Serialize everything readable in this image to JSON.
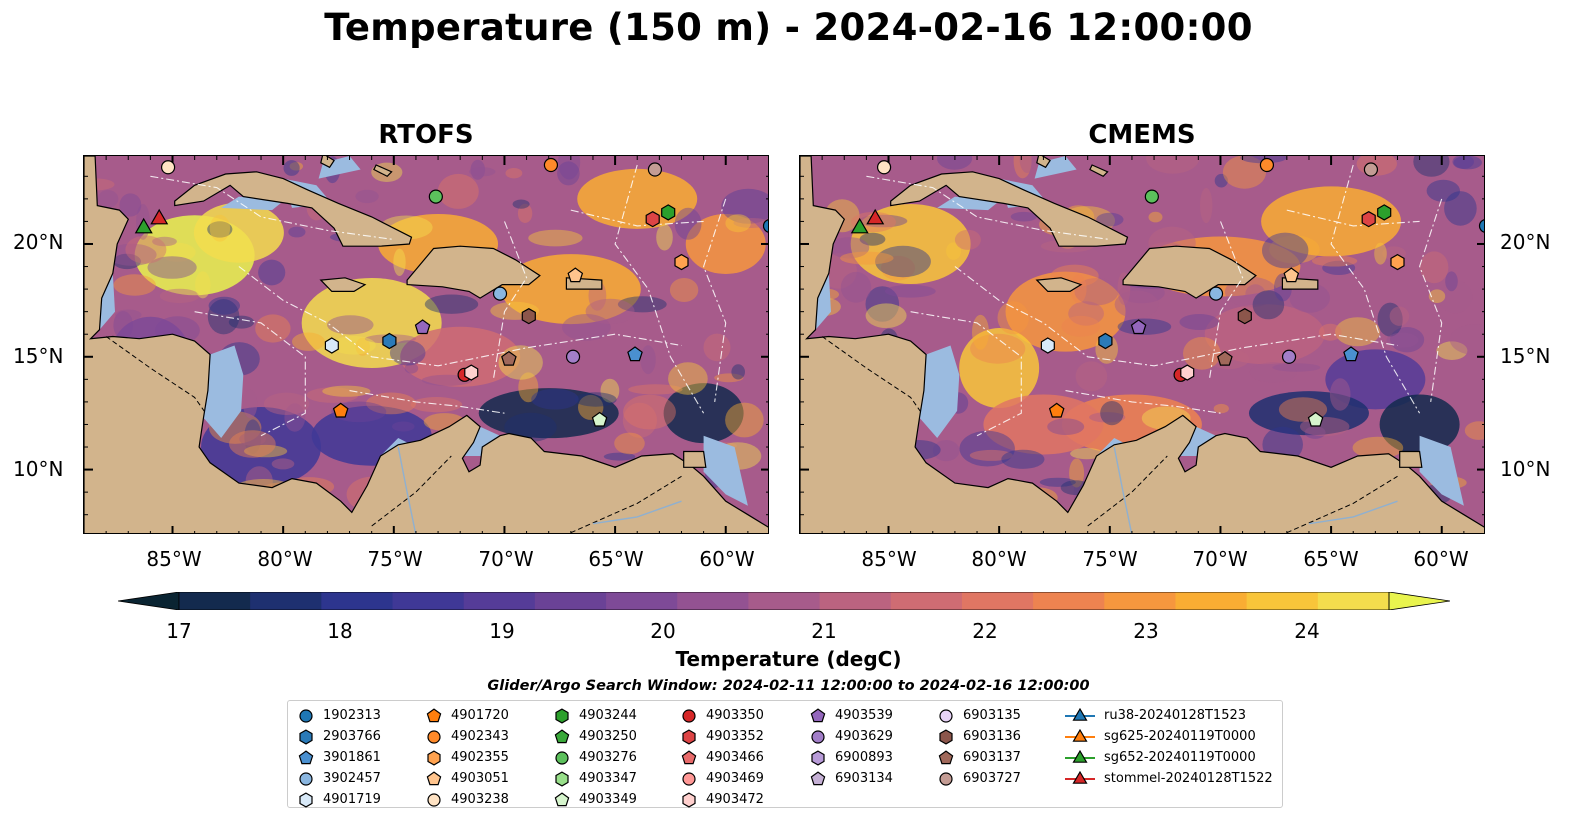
{
  "title": "Temperature (150 m) - 2024-02-16 12:00:00",
  "panels": [
    {
      "title": "RTOFS"
    },
    {
      "title": "CMEMS"
    }
  ],
  "lat_labels": [
    "20°N",
    "15°N",
    "10°N"
  ],
  "lon_labels": [
    "85°W",
    "80°W",
    "75°W",
    "70°W",
    "65°W",
    "60°W"
  ],
  "colorbar": {
    "label": "Temperature (degC)",
    "ticks": [
      "17",
      "18",
      "19",
      "20",
      "21",
      "22",
      "23",
      "24"
    ],
    "range": [
      16.75,
      24.75
    ],
    "colors": [
      "#0a2432",
      "#132a4e",
      "#1e3070",
      "#2d358e",
      "#3f3896",
      "#553c98",
      "#6a4296",
      "#7e4a97",
      "#935292",
      "#a75b8b",
      "#bb6380",
      "#cf6c73",
      "#e07663",
      "#ed8350",
      "#f6973e",
      "#f9ad33",
      "#f8c53a",
      "#f3dd4d",
      "#e9f44e"
    ]
  },
  "legend": {
    "title": "Glider/Argo Search Window: 2024-02-11 12:00:00 to 2024-02-16 12:00:00",
    "columns": [
      [
        {
          "label": "1902313",
          "marker": "circle",
          "color": "#1f77b4"
        },
        {
          "label": "2903766",
          "marker": "hexagon",
          "color": "#2a7ab8"
        },
        {
          "label": "3901861",
          "marker": "pentagon",
          "color": "#4a90d0"
        },
        {
          "label": "3902457",
          "marker": "circle",
          "color": "#8ab6e0"
        },
        {
          "label": "4901719",
          "marker": "hexagon",
          "color": "#d8e9f8"
        }
      ],
      [
        {
          "label": "4901720",
          "marker": "pentagon",
          "color": "#ff7f0e"
        },
        {
          "label": "4902343",
          "marker": "circle",
          "color": "#ff8a2a"
        },
        {
          "label": "4902355",
          "marker": "hexagon",
          "color": "#ffa24f"
        },
        {
          "label": "4903051",
          "marker": "pentagon",
          "color": "#ffc48d"
        },
        {
          "label": "4903238",
          "marker": "circle",
          "color": "#ffe3c4"
        }
      ],
      [
        {
          "label": "4903244",
          "marker": "hexagon",
          "color": "#2ca02c"
        },
        {
          "label": "4903250",
          "marker": "pentagon",
          "color": "#39a83a"
        },
        {
          "label": "4903276",
          "marker": "circle",
          "color": "#5cc05c"
        },
        {
          "label": "4903347",
          "marker": "hexagon",
          "color": "#98df8a"
        },
        {
          "label": "4903349",
          "marker": "pentagon",
          "color": "#d6f5cd"
        }
      ],
      [
        {
          "label": "4903350",
          "marker": "circle",
          "color": "#d62728"
        },
        {
          "label": "4903352",
          "marker": "hexagon",
          "color": "#dd4445"
        },
        {
          "label": "4903466",
          "marker": "pentagon",
          "color": "#e86a6a"
        },
        {
          "label": "4903469",
          "marker": "circle",
          "color": "#ff9896"
        },
        {
          "label": "4903472",
          "marker": "hexagon",
          "color": "#ffd0ce"
        }
      ],
      [
        {
          "label": "4903539",
          "marker": "pentagon",
          "color": "#9467bd"
        },
        {
          "label": "4903629",
          "marker": "circle",
          "color": "#a27ec8"
        },
        {
          "label": "6900893",
          "marker": "hexagon",
          "color": "#b89bd8"
        },
        {
          "label": "6903134",
          "marker": "pentagon",
          "color": "#c5b0d5"
        }
      ],
      [
        {
          "label": "6903135",
          "marker": "circle",
          "color": "#e8d3f7"
        },
        {
          "label": "6903136",
          "marker": "hexagon",
          "color": "#8c564b"
        },
        {
          "label": "6903137",
          "marker": "pentagon",
          "color": "#a0685a"
        },
        {
          "label": "6903727",
          "marker": "circle",
          "color": "#c49c94"
        }
      ],
      [
        {
          "label": "ru38-20240128T1523",
          "marker": "triangle-line",
          "color": "#1f77b4"
        },
        {
          "label": "sg625-20240119T0000",
          "marker": "triangle-line",
          "color": "#ff7f0e"
        },
        {
          "label": "sg652-20240119T0000",
          "marker": "triangle-line",
          "color": "#2ca02c"
        },
        {
          "label": "stommel-20240128T1522",
          "marker": "triangle-line",
          "color": "#d62728"
        }
      ]
    ]
  },
  "floats": [
    {
      "id": "1902313",
      "lon": -58.0,
      "lat": 20.8
    },
    {
      "id": "2903766",
      "lon": -75.2,
      "lat": 15.7
    },
    {
      "id": "3901861",
      "lon": -64.1,
      "lat": 15.1
    },
    {
      "id": "3902457",
      "lon": -70.2,
      "lat": 17.8
    },
    {
      "id": "4901719",
      "lon": -77.8,
      "lat": 15.5
    },
    {
      "id": "4901720",
      "lon": -77.4,
      "lat": 12.6
    },
    {
      "id": "4902343",
      "lon": -67.9,
      "lat": 23.5
    },
    {
      "id": "4902355",
      "lon": -62.0,
      "lat": 19.2
    },
    {
      "id": "4903051",
      "lon": -66.8,
      "lat": 18.6
    },
    {
      "id": "4903238",
      "lon": -85.2,
      "lat": 23.4
    },
    {
      "id": "4903244",
      "lon": -62.6,
      "lat": 21.4
    },
    {
      "id": "4903276",
      "lon": -73.1,
      "lat": 22.1
    },
    {
      "id": "4903349",
      "lon": -65.7,
      "lat": 12.2
    },
    {
      "id": "4903350",
      "lon": -71.8,
      "lat": 14.2
    },
    {
      "id": "4903352",
      "lon": -63.3,
      "lat": 21.1
    },
    {
      "id": "4903472",
      "lon": -71.5,
      "lat": 14.3
    },
    {
      "id": "4903539",
      "lon": -73.7,
      "lat": 16.3
    },
    {
      "id": "4903629",
      "lon": -66.9,
      "lat": 15.0
    },
    {
      "id": "6903136",
      "lon": -68.9,
      "lat": 16.8
    },
    {
      "id": "6903137",
      "lon": -69.8,
      "lat": 14.9
    },
    {
      "id": "6903727",
      "lon": -63.2,
      "lat": 23.3
    }
  ],
  "gliders": [
    {
      "id": "sg652-20240119T0000",
      "lon": -86.3,
      "lat": 20.7
    },
    {
      "id": "stommel-20240128T1522",
      "lon": -85.6,
      "lat": 21.1
    }
  ]
}
